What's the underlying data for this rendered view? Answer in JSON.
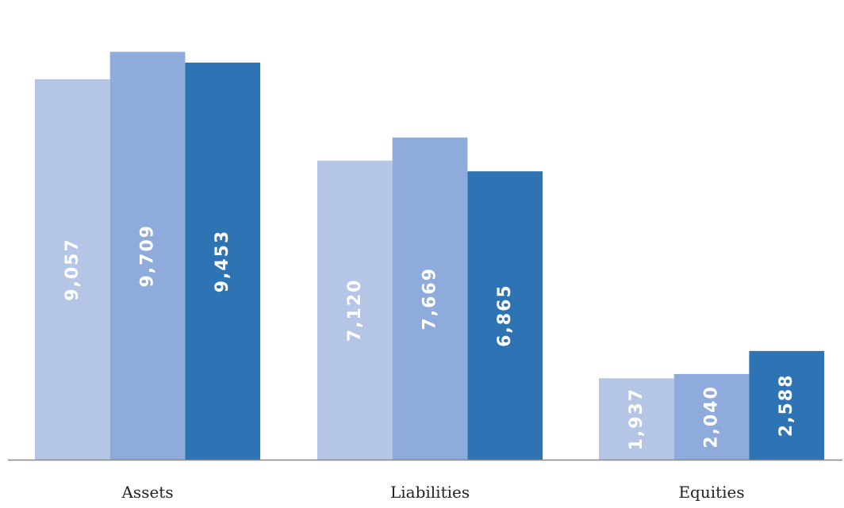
{
  "chart_data": {
    "type": "bar",
    "categories": [
      "Assets",
      "Liabilities",
      "Equities"
    ],
    "series": [
      {
        "values": [
          9057,
          7120,
          1937
        ],
        "display": [
          "9,057",
          "7,120",
          "1,937"
        ]
      },
      {
        "values": [
          9709,
          7669,
          2040
        ],
        "display": [
          "9,709",
          "7,669",
          "2,040"
        ]
      },
      {
        "values": [
          9453,
          6865,
          2588
        ],
        "display": [
          "9,453",
          "6,865",
          "2,588"
        ]
      }
    ],
    "colors": [
      "#b4c5e6",
      "#8eabdc",
      "#2e74b5"
    ],
    "axis_color": "#888888",
    "title": "",
    "xlabel": "",
    "ylabel": "",
    "ylim": [
      0,
      10000
    ],
    "grid": false,
    "legend": "none"
  }
}
